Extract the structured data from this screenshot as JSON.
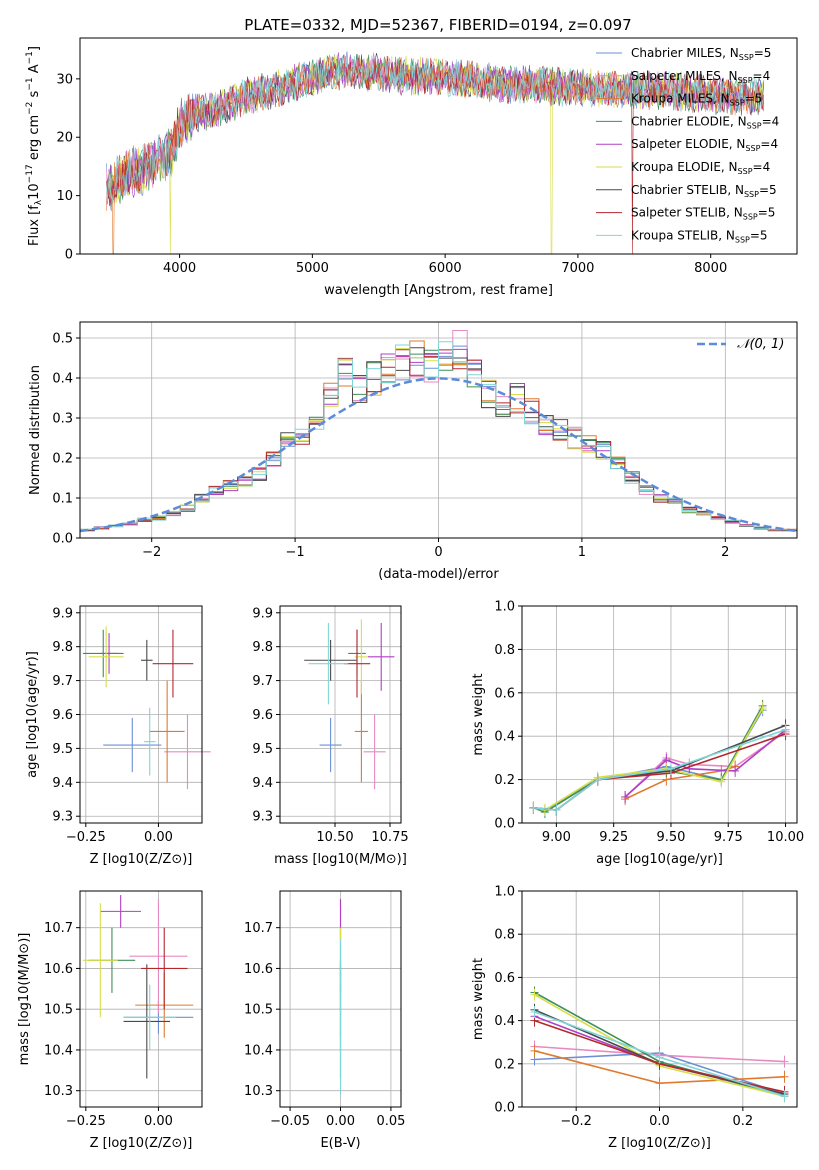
{
  "figure_title": "PLATE=0332, MJD=52367, FIBERID=0194, z=0.097",
  "legend_series": [
    {
      "name": "Chabrier MILES, N",
      "sub": "SSP",
      "suffix": "=5",
      "color": "#6b8fd6"
    },
    {
      "name": "Salpeter MILES, N",
      "sub": "SSP",
      "suffix": "=4",
      "color": "#e78ac3"
    },
    {
      "name": "Kroupa MILES, N",
      "sub": "SSP",
      "suffix": "=5",
      "color": "#e07a2e"
    },
    {
      "name": "Chabrier ELODIE, N",
      "sub": "SSP",
      "suffix": "=4",
      "color": "#3f8f5a"
    },
    {
      "name": "Salpeter ELODIE, N",
      "sub": "SSP",
      "suffix": "=4",
      "color": "#b03fc6"
    },
    {
      "name": "Kroupa ELODIE, N",
      "sub": "SSP",
      "suffix": "=4",
      "color": "#d6de4a"
    },
    {
      "name": "Chabrier STELIB, N",
      "sub": "SSP",
      "suffix": "=5",
      "color": "#4a4a4a"
    },
    {
      "name": "Salpeter STELIB, N",
      "sub": "SSP",
      "suffix": "=5",
      "color": "#b3282d"
    },
    {
      "name": "Kroupa STELIB, N",
      "sub": "SSP",
      "suffix": "=5",
      "color": "#7fd6d8"
    }
  ],
  "chart_data": [
    {
      "id": "spectrum",
      "type": "line",
      "xlabel": "wavelength [Angstrom, rest frame]",
      "ylabel": "Flux [f_λ10^-17 erg cm^-2 s^-1 A^-1]",
      "xlim": [
        3250,
        8650
      ],
      "ylim": [
        0,
        37
      ],
      "xticks": [
        4000,
        5000,
        6000,
        7000,
        8000
      ],
      "yticks": [
        0,
        10,
        20,
        30
      ],
      "shape": {
        "x": [
          3450,
          3500,
          3600,
          3700,
          3800,
          3900,
          3950,
          4000,
          4100,
          4200,
          4300,
          4500,
          4700,
          4900,
          5100,
          5300,
          5500,
          5700,
          5900,
          6100,
          6300,
          6500,
          6700,
          6900,
          7100,
          7300,
          7500,
          7700,
          7900,
          8100,
          8300,
          8400
        ],
        "y": [
          11,
          12,
          14,
          14,
          16,
          17,
          18,
          22,
          24,
          24.5,
          25,
          27,
          28,
          29.5,
          31,
          31.5,
          31,
          30.5,
          30.5,
          30,
          29.5,
          29,
          29,
          28.5,
          28.5,
          28,
          28,
          28,
          27.5,
          27,
          27,
          27
        ]
      },
      "note_dropouts": [
        3500,
        3930,
        6800,
        7410
      ]
    },
    {
      "id": "residual-histogram",
      "type": "bar",
      "xlabel": "(data-model)/error",
      "ylabel": "Normed distribution",
      "xlim": [
        -2.5,
        2.5
      ],
      "ylim": [
        0,
        0.54
      ],
      "xticks": [
        -2,
        -1,
        0,
        1,
        2
      ],
      "yticks": [
        0.0,
        0.1,
        0.2,
        0.3,
        0.4,
        0.5
      ],
      "grid": true,
      "legend": "top-right",
      "legend_label": "N(0,1)",
      "bin_centers": [
        -2.45,
        -2.35,
        -2.25,
        -2.15,
        -2.05,
        -1.95,
        -1.85,
        -1.75,
        -1.65,
        -1.55,
        -1.45,
        -1.35,
        -1.25,
        -1.15,
        -1.05,
        -0.95,
        -0.85,
        -0.75,
        -0.65,
        -0.55,
        -0.45,
        -0.35,
        -0.25,
        -0.15,
        -0.05,
        0.05,
        0.15,
        0.25,
        0.35,
        0.45,
        0.55,
        0.65,
        0.75,
        0.85,
        0.95,
        1.05,
        1.15,
        1.25,
        1.35,
        1.45,
        1.55,
        1.65,
        1.75,
        1.85,
        1.95,
        2.05,
        2.15,
        2.25,
        2.35,
        2.45
      ],
      "base_values": [
        0.02,
        0.025,
        0.03,
        0.035,
        0.045,
        0.05,
        0.06,
        0.075,
        0.1,
        0.12,
        0.13,
        0.14,
        0.16,
        0.2,
        0.24,
        0.26,
        0.3,
        0.35,
        0.42,
        0.38,
        0.4,
        0.42,
        0.44,
        0.45,
        0.43,
        0.45,
        0.47,
        0.42,
        0.36,
        0.34,
        0.35,
        0.32,
        0.29,
        0.27,
        0.25,
        0.24,
        0.22,
        0.19,
        0.15,
        0.12,
        0.1,
        0.09,
        0.07,
        0.06,
        0.05,
        0.04,
        0.03,
        0.025,
        0.02,
        0.02
      ]
    },
    {
      "id": "age-vs-Z",
      "type": "scatter",
      "xlabel": "Z [log10(Z/Z⊙)]",
      "ylabel": "age [log10(age/yr)]",
      "xlim": [
        -0.27,
        0.15
      ],
      "ylim": [
        9.28,
        9.92
      ],
      "xticks": [
        -0.25,
        0.0
      ],
      "yticks": [
        9.3,
        9.4,
        9.5,
        9.6,
        9.7,
        9.8,
        9.9
      ],
      "grid": true,
      "points": [
        {
          "series": 0,
          "x": -0.09,
          "y": 9.51,
          "xerr": 0.1,
          "yerr": 0.08
        },
        {
          "series": 1,
          "x": 0.1,
          "y": 9.49,
          "xerr": 0.08,
          "yerr": 0.11
        },
        {
          "series": 2,
          "x": 0.03,
          "y": 9.55,
          "xerr": 0.06,
          "yerr": 0.15
        },
        {
          "series": 3,
          "x": -0.19,
          "y": 9.78,
          "xerr": 0.07,
          "yerr": 0.07
        },
        {
          "series": 4,
          "x": -0.17,
          "y": 9.78,
          "xerr": 0.03,
          "yerr": 0.06
        },
        {
          "series": 5,
          "x": -0.18,
          "y": 9.77,
          "xerr": 0.06,
          "yerr": 0.09
        },
        {
          "series": 6,
          "x": -0.04,
          "y": 9.76,
          "xerr": 0.02,
          "yerr": 0.06
        },
        {
          "series": 7,
          "x": 0.05,
          "y": 9.75,
          "xerr": 0.07,
          "yerr": 0.1
        },
        {
          "series": 8,
          "x": -0.03,
          "y": 9.52,
          "xerr": 0.02,
          "yerr": 0.1
        }
      ]
    },
    {
      "id": "age-vs-mass",
      "type": "scatter",
      "xlabel": "mass [log10(M/M⊙)]",
      "ylabel": "",
      "xlim": [
        10.25,
        10.8
      ],
      "ylim": [
        9.28,
        9.92
      ],
      "xticks": [
        10.5,
        10.75
      ],
      "yticks": [
        9.3,
        9.4,
        9.5,
        9.6,
        9.7,
        9.8,
        9.9
      ],
      "grid": true,
      "points": [
        {
          "series": 0,
          "x": 10.48,
          "y": 9.51,
          "xerr": 0.05,
          "yerr": 0.08
        },
        {
          "series": 1,
          "x": 10.68,
          "y": 9.49,
          "xerr": 0.05,
          "yerr": 0.11
        },
        {
          "series": 2,
          "x": 10.62,
          "y": 9.55,
          "xerr": 0.03,
          "yerr": 0.15
        },
        {
          "series": 3,
          "x": 10.6,
          "y": 9.78,
          "xerr": 0.04,
          "yerr": 0.07
        },
        {
          "series": 4,
          "x": 10.71,
          "y": 9.77,
          "xerr": 0.06,
          "yerr": 0.1
        },
        {
          "series": 5,
          "x": 10.62,
          "y": 9.77,
          "xerr": 0.03,
          "yerr": 0.11
        },
        {
          "series": 6,
          "x": 10.48,
          "y": 9.76,
          "xerr": 0.12,
          "yerr": 0.06
        },
        {
          "series": 7,
          "x": 10.6,
          "y": 9.75,
          "xerr": 0.06,
          "yerr": 0.1
        },
        {
          "series": 8,
          "x": 10.47,
          "y": 9.75,
          "xerr": 0.09,
          "yerr": 0.12
        }
      ]
    },
    {
      "id": "weight-vs-age",
      "type": "line",
      "xlabel": "age [log10(age/yr)]",
      "ylabel": "mass weight",
      "xlim": [
        8.85,
        10.05
      ],
      "ylim": [
        0,
        1
      ],
      "xticks": [
        9.0,
        9.25,
        9.5,
        9.75,
        10.0
      ],
      "yticks": [
        0.0,
        0.2,
        0.4,
        0.6,
        0.8,
        1.0
      ],
      "grid": true,
      "series_points": [
        {
          "series": 0,
          "x": [
            8.9,
            8.95,
            9.18,
            9.48,
            9.72,
            9.9
          ],
          "y": [
            0.07,
            0.06,
            0.2,
            0.26,
            0.2,
            0.52
          ]
        },
        {
          "series": 1,
          "x": [
            9.3,
            9.48,
            9.58,
            9.78,
            10.0
          ],
          "y": [
            0.12,
            0.3,
            0.27,
            0.26,
            0.42
          ]
        },
        {
          "series": 2,
          "x": [
            9.3,
            9.48,
            9.72,
            9.78
          ],
          "y": [
            0.11,
            0.2,
            0.24,
            0.26
          ]
        },
        {
          "series": 3,
          "x": [
            8.9,
            8.95,
            9.18,
            9.48,
            9.72,
            9.9
          ],
          "y": [
            0.07,
            0.05,
            0.2,
            0.24,
            0.2,
            0.54
          ]
        },
        {
          "series": 4,
          "x": [
            9.3,
            9.48,
            9.58,
            9.78,
            10.0
          ],
          "y": [
            0.12,
            0.29,
            0.25,
            0.24,
            0.43
          ]
        },
        {
          "series": 5,
          "x": [
            8.9,
            8.95,
            9.18,
            9.48,
            9.72,
            9.9
          ],
          "y": [
            0.07,
            0.06,
            0.21,
            0.25,
            0.19,
            0.53
          ]
        },
        {
          "series": 6,
          "x": [
            8.9,
            9.0,
            9.18,
            9.5,
            10.0
          ],
          "y": [
            0.07,
            0.06,
            0.2,
            0.24,
            0.45
          ]
        },
        {
          "series": 7,
          "x": [
            8.9,
            9.0,
            9.18,
            9.5,
            10.0
          ],
          "y": [
            0.07,
            0.06,
            0.2,
            0.23,
            0.41
          ]
        },
        {
          "series": 8,
          "x": [
            8.9,
            9.0,
            9.18,
            9.5,
            10.0
          ],
          "y": [
            0.07,
            0.06,
            0.2,
            0.25,
            0.43
          ]
        }
      ]
    },
    {
      "id": "mass-vs-Z",
      "type": "scatter",
      "xlabel": "Z [log10(Z/Z⊙)]",
      "ylabel": "mass [log10(M/M⊙)]",
      "xlim": [
        -0.27,
        0.15
      ],
      "ylim": [
        10.26,
        10.79
      ],
      "xticks": [
        -0.25,
        0.0
      ],
      "yticks": [
        10.3,
        10.4,
        10.5,
        10.6,
        10.7
      ],
      "grid": true,
      "points": [
        {
          "series": 0,
          "x": 0.0,
          "y": 10.48,
          "xerr": 0.12,
          "yerr": 0.04
        },
        {
          "series": 1,
          "x": 0.0,
          "y": 10.63,
          "xerr": 0.1,
          "yerr": 0.14
        },
        {
          "series": 2,
          "x": 0.02,
          "y": 10.51,
          "xerr": 0.1,
          "yerr": 0.08
        },
        {
          "series": 3,
          "x": -0.16,
          "y": 10.62,
          "xerr": 0.08,
          "yerr": 0.08
        },
        {
          "series": 4,
          "x": -0.13,
          "y": 10.74,
          "xerr": 0.07,
          "yerr": 0.04
        },
        {
          "series": 5,
          "x": -0.2,
          "y": 10.62,
          "xerr": 0.06,
          "yerr": 0.14
        },
        {
          "series": 6,
          "x": -0.04,
          "y": 10.47,
          "xerr": 0.08,
          "yerr": 0.14
        },
        {
          "series": 7,
          "x": 0.02,
          "y": 10.6,
          "xerr": 0.08,
          "yerr": 0.1
        },
        {
          "series": 8,
          "x": -0.03,
          "y": 10.48,
          "xerr": 0.09,
          "yerr": 0.08
        }
      ]
    },
    {
      "id": "mass-vs-EBV",
      "type": "scatter",
      "xlabel": "E(B-V)",
      "ylabel": "",
      "xlim": [
        -0.06,
        0.06
      ],
      "ylim": [
        10.26,
        10.79
      ],
      "xticks": [
        -0.05,
        0.0,
        0.05
      ],
      "yticks": [
        10.3,
        10.4,
        10.5,
        10.6,
        10.7
      ],
      "grid": true,
      "points": [
        {
          "series": 0,
          "x": 0.0,
          "y": 10.48,
          "xerr": 0.0,
          "yerr": 0.08
        },
        {
          "series": 1,
          "x": 0.0,
          "y": 10.63,
          "xerr": 0.0,
          "yerr": 0.14
        },
        {
          "series": 2,
          "x": 0.0,
          "y": 10.51,
          "xerr": 0.0,
          "yerr": 0.08
        },
        {
          "series": 3,
          "x": 0.0,
          "y": 10.62,
          "xerr": 0.0,
          "yerr": 0.08
        },
        {
          "series": 4,
          "x": 0.0,
          "y": 10.72,
          "xerr": 0.0,
          "yerr": 0.05
        },
        {
          "series": 5,
          "x": 0.0,
          "y": 10.62,
          "xerr": 0.0,
          "yerr": 0.08
        },
        {
          "series": 6,
          "x": 0.0,
          "y": 10.47,
          "xerr": 0.0,
          "yerr": 0.14
        },
        {
          "series": 7,
          "x": 0.0,
          "y": 10.6,
          "xerr": 0.0,
          "yerr": 0.02
        },
        {
          "series": 8,
          "x": 0.0,
          "y": 10.48,
          "xerr": 0.0,
          "yerr": 0.19
        }
      ]
    },
    {
      "id": "weight-vs-Z",
      "type": "line",
      "xlabel": "Z [log10(Z/Z⊙)]",
      "ylabel": "mass weight",
      "xlim": [
        -0.33,
        0.33
      ],
      "ylim": [
        0,
        1
      ],
      "xticks": [
        -0.2,
        0.0,
        0.2
      ],
      "yticks": [
        0.0,
        0.2,
        0.4,
        0.6,
        0.8,
        1.0
      ],
      "grid": true,
      "series_points": [
        {
          "series": 0,
          "x": [
            -0.3,
            0.0,
            0.3
          ],
          "y": [
            0.22,
            0.25,
            0.06
          ]
        },
        {
          "series": 1,
          "x": [
            -0.3,
            0.0,
            0.3
          ],
          "y": [
            0.28,
            0.24,
            0.21
          ]
        },
        {
          "series": 2,
          "x": [
            -0.3,
            0.0,
            0.3
          ],
          "y": [
            0.26,
            0.11,
            0.14
          ]
        },
        {
          "series": 3,
          "x": [
            -0.3,
            0.0,
            0.3
          ],
          "y": [
            0.53,
            0.21,
            0.05
          ]
        },
        {
          "series": 4,
          "x": [
            -0.3,
            0.0,
            0.3
          ],
          "y": [
            0.42,
            0.2,
            0.06
          ]
        },
        {
          "series": 5,
          "x": [
            -0.3,
            0.0,
            0.3
          ],
          "y": [
            0.52,
            0.19,
            0.05
          ]
        },
        {
          "series": 6,
          "x": [
            -0.3,
            0.0,
            0.3
          ],
          "y": [
            0.45,
            0.2,
            0.06
          ]
        },
        {
          "series": 7,
          "x": [
            -0.3,
            0.0,
            0.3
          ],
          "y": [
            0.4,
            0.2,
            0.07
          ]
        },
        {
          "series": 8,
          "x": [
            -0.3,
            0.0,
            0.3
          ],
          "y": [
            0.44,
            0.23,
            0.05
          ]
        }
      ]
    }
  ]
}
